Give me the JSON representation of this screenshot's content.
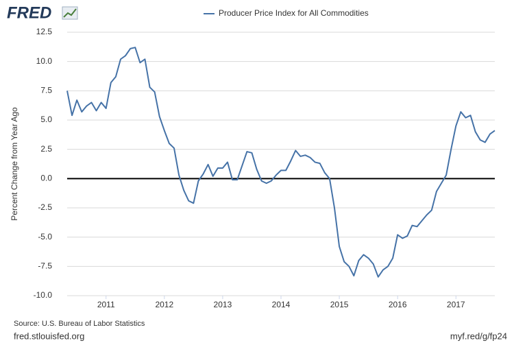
{
  "logo": "FRED",
  "chart_data": {
    "type": "line",
    "title": "Producer Price Index for All Commodities",
    "ylabel": "Percent Change from Year Ago",
    "source": "Source: U.S. Bureau of Labor Statistics",
    "site": "fred.stlouisfed.org",
    "short_url": "myf.red/g/fp24",
    "categories": [
      null,
      null,
      null,
      null,
      null,
      null,
      null,
      null,
      "2011",
      null,
      null,
      null,
      null,
      null,
      null,
      null,
      null,
      null,
      null,
      null,
      "2012",
      null,
      null,
      null,
      null,
      null,
      null,
      null,
      null,
      null,
      null,
      null,
      "2013",
      null,
      null,
      null,
      null,
      null,
      null,
      null,
      null,
      null,
      null,
      null,
      "2014",
      null,
      null,
      null,
      null,
      null,
      null,
      null,
      null,
      null,
      null,
      null,
      "2015",
      null,
      null,
      null,
      null,
      null,
      null,
      null,
      null,
      null,
      null,
      null,
      "2016",
      null,
      null,
      null,
      null,
      null,
      null,
      null,
      null,
      null,
      null,
      null,
      "2017",
      null,
      null,
      null,
      null,
      null,
      null,
      null,
      null
    ],
    "series": [
      {
        "name": "Producer Price Index for All Commodities",
        "color": "#4572a7",
        "values": [
          7.5,
          5.4,
          6.7,
          5.7,
          6.2,
          6.5,
          5.8,
          6.5,
          6.0,
          8.2,
          8.7,
          10.2,
          10.5,
          11.1,
          11.2,
          9.9,
          10.2,
          7.8,
          7.4,
          5.3,
          4.1,
          3.0,
          2.6,
          0.3,
          -1.0,
          -1.9,
          -2.1,
          -0.2,
          0.4,
          1.2,
          0.2,
          0.9,
          0.9,
          1.4,
          -0.1,
          -0.1,
          1.1,
          2.3,
          2.2,
          0.8,
          -0.2,
          -0.4,
          -0.2,
          0.3,
          0.7,
          0.7,
          1.5,
          2.4,
          1.9,
          2.0,
          1.8,
          1.4,
          1.3,
          0.5,
          0.0,
          -2.5,
          -5.8,
          -7.1,
          -7.5,
          -8.3,
          -7.0,
          -6.5,
          -6.8,
          -7.3,
          -8.4,
          -7.8,
          -7.5,
          -6.8,
          -4.8,
          -5.1,
          -4.9,
          -4.0,
          -4.1,
          -3.6,
          -3.1,
          -2.7,
          -1.1,
          -0.4,
          0.3,
          2.5,
          4.5,
          5.7,
          5.2,
          5.4,
          4.0,
          3.3,
          3.1,
          3.8,
          4.1
        ]
      }
    ],
    "ylim": [
      -10,
      12.5
    ],
    "yticks": [
      {
        "value": -10,
        "label": "-10.0"
      },
      -7.5,
      {
        "value": -5,
        "label": "-5.0"
      },
      -2.5,
      {
        "value": 0,
        "label": "0.0"
      },
      2.5,
      {
        "value": 5,
        "label": "5.0"
      },
      7.5,
      {
        "value": 10,
        "label": "10.0"
      },
      12.5
    ],
    "grid": true
  }
}
